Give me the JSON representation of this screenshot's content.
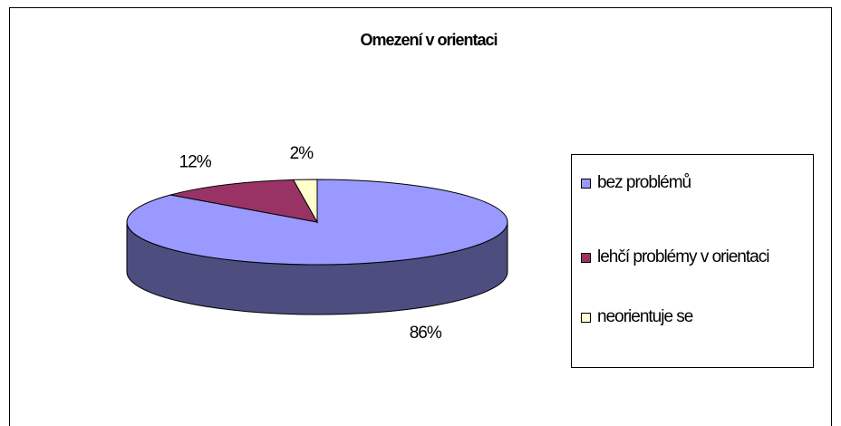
{
  "chart_data": {
    "type": "pie",
    "title": "Omezení v orientaci",
    "categories": [
      "bez problémů",
      "lehčí problémy v orientaci",
      "neorientuje se"
    ],
    "values": [
      86,
      12,
      2
    ],
    "value_labels": [
      "86%",
      "12%",
      "2%"
    ],
    "colors": [
      "#9999ff",
      "#993366",
      "#ffffcc"
    ],
    "legend": "right"
  }
}
